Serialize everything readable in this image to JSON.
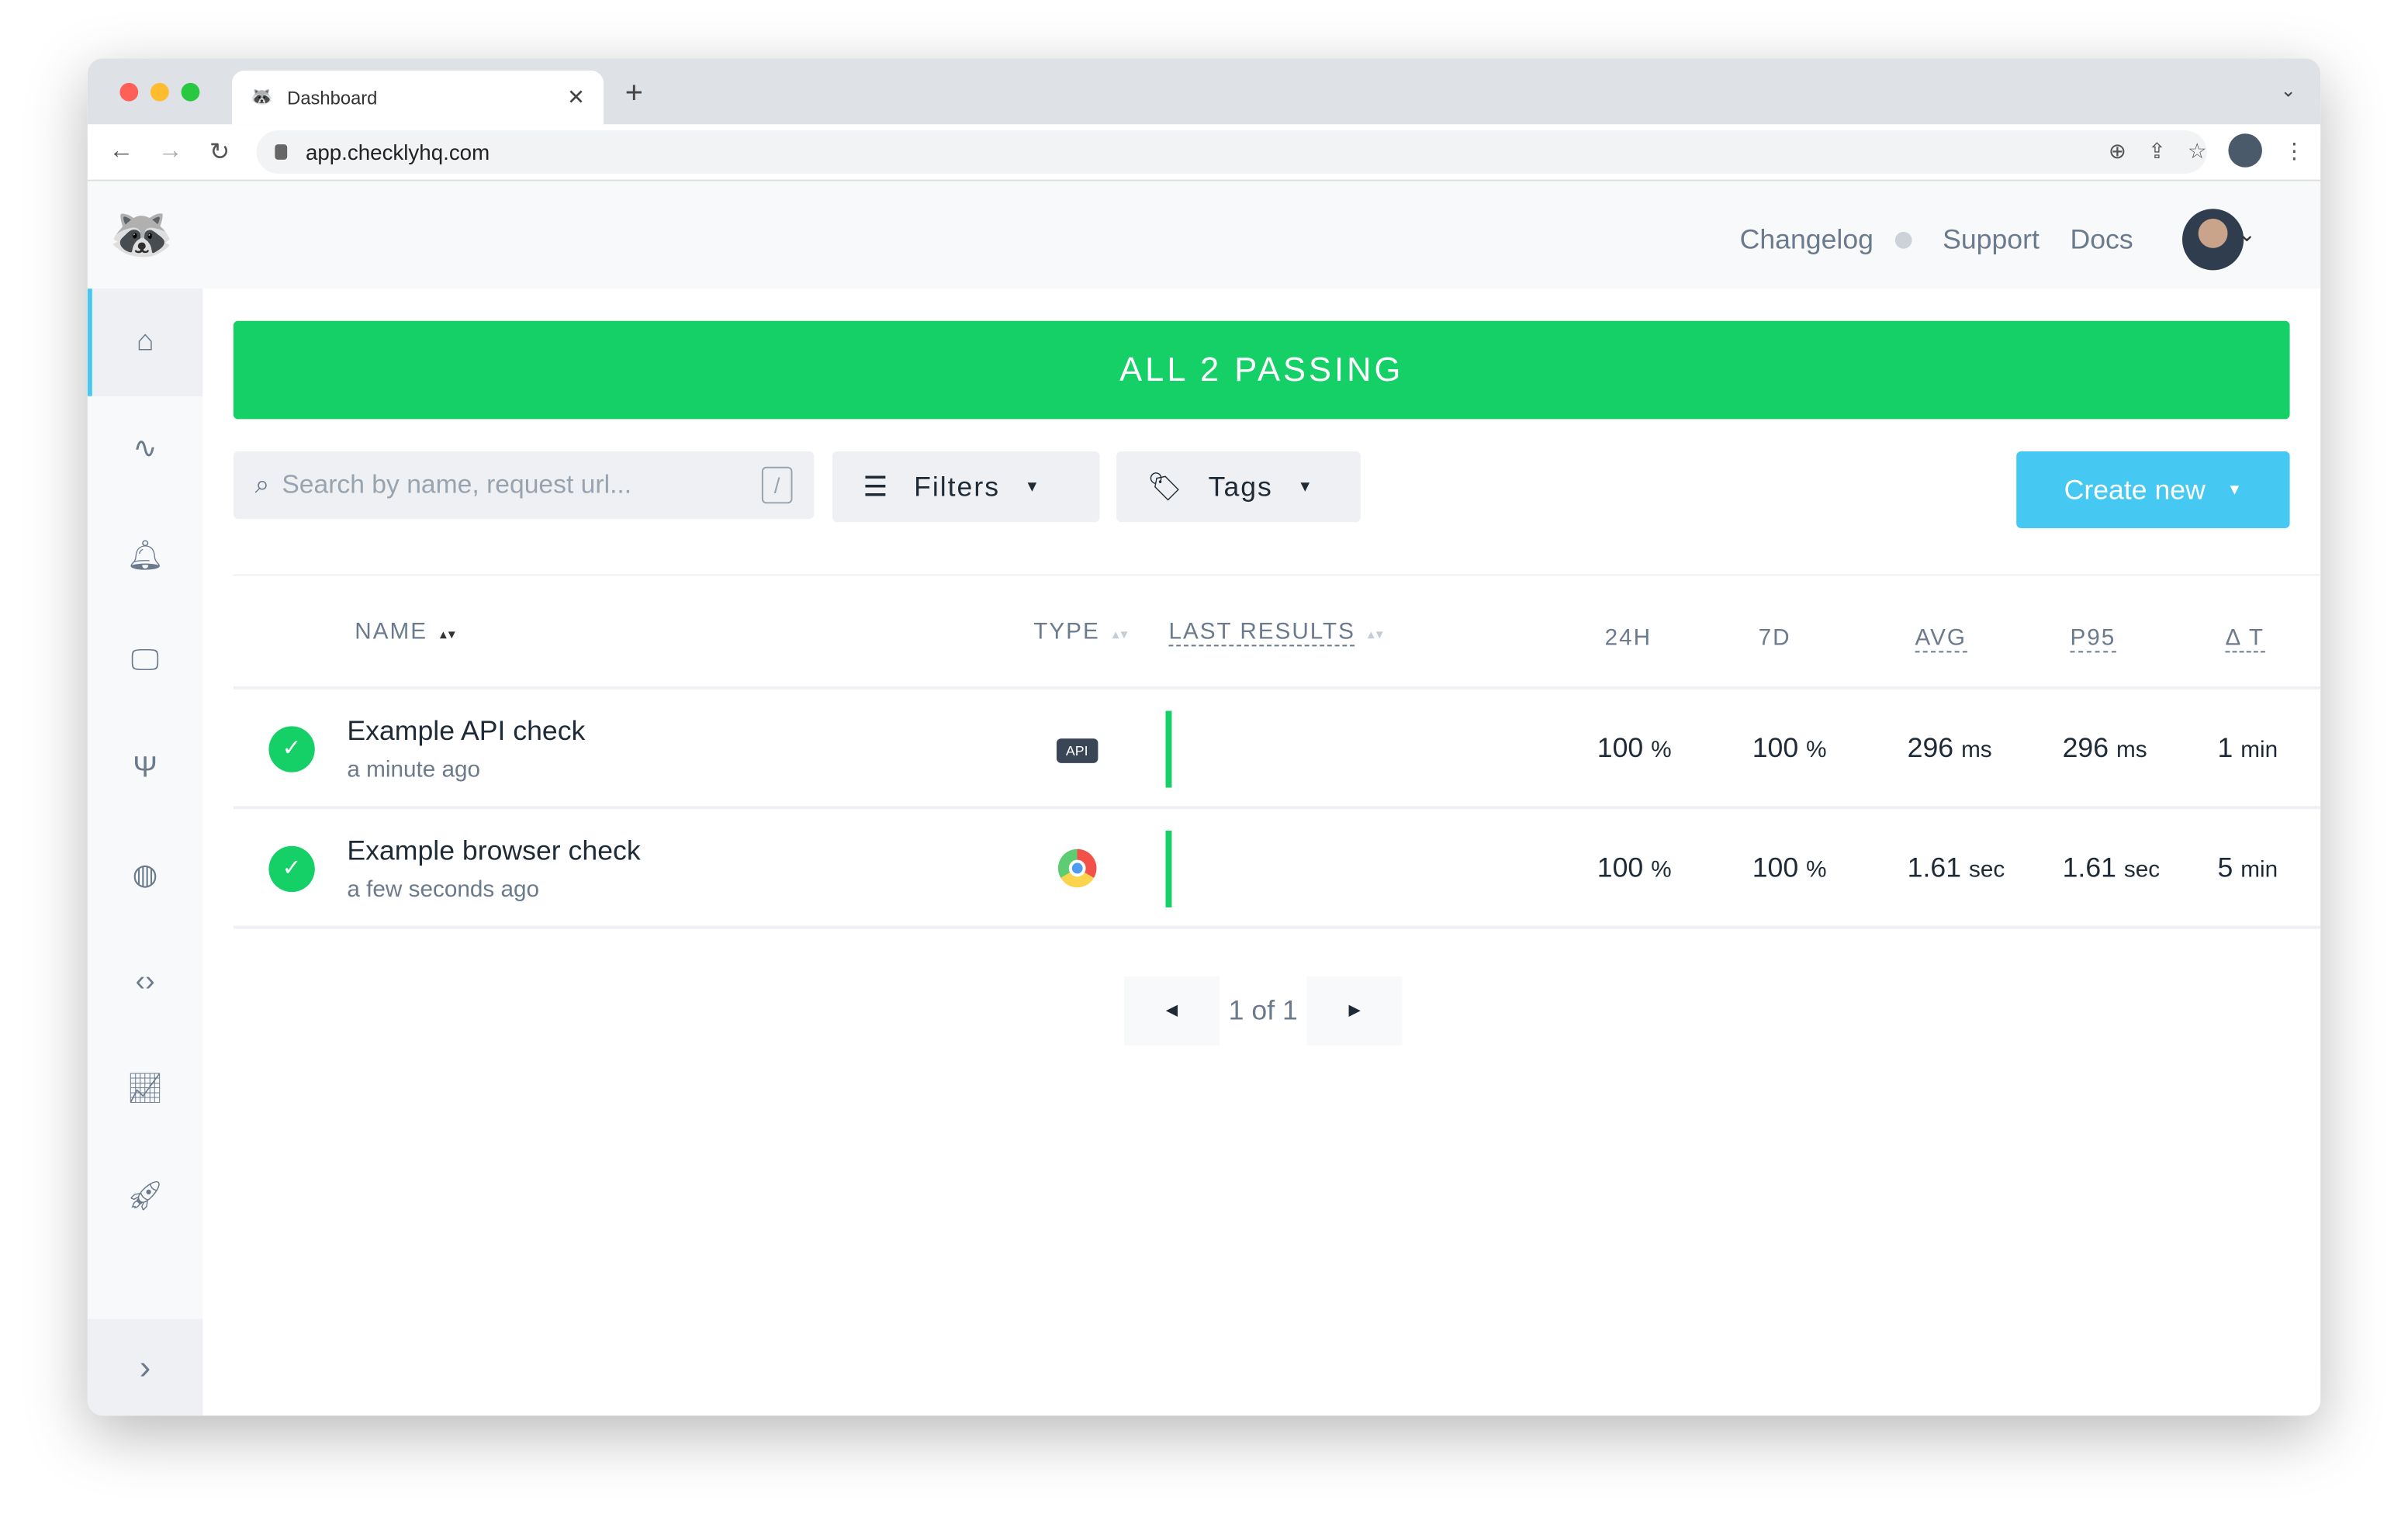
{
  "browser": {
    "tab_title": "Dashboard",
    "url": "app.checklyhq.com"
  },
  "header": {
    "changelog": "Changelog",
    "support": "Support",
    "docs": "Docs"
  },
  "sidebar": {
    "items": [
      "home",
      "activity",
      "alerts",
      "monitor",
      "integrations",
      "globe",
      "code",
      "analytics",
      "rocket"
    ]
  },
  "banner": {
    "text": "ALL 2 PASSING",
    "color": "#15d066"
  },
  "controls": {
    "search_placeholder": "Search by name, request url...",
    "search_shortcut": "/",
    "filters": "Filters",
    "tags": "Tags",
    "create_new": "Create new",
    "accent": "#45c8f1"
  },
  "table": {
    "headers": {
      "name": "NAME",
      "type": "TYPE",
      "last_results": "LAST RESULTS",
      "h24": "24H",
      "d7": "7D",
      "avg": "AVG",
      "p95": "P95",
      "dt": "Δ T"
    },
    "rows": [
      {
        "name": "Example API check",
        "sub": "a minute ago",
        "type": "API",
        "h24": "100",
        "h24_unit": "%",
        "d7": "100",
        "d7_unit": "%",
        "avg": "296",
        "avg_unit": "ms",
        "p95": "296",
        "p95_unit": "ms",
        "dt": "1",
        "dt_unit": "min",
        "status": "passing"
      },
      {
        "name": "Example browser check",
        "sub": "a few seconds ago",
        "type": "browser",
        "h24": "100",
        "h24_unit": "%",
        "d7": "100",
        "d7_unit": "%",
        "avg": "1.61",
        "avg_unit": "sec",
        "p95": "1.61",
        "p95_unit": "sec",
        "dt": "5",
        "dt_unit": "min",
        "status": "passing"
      }
    ]
  },
  "pagination": {
    "label": "1 of 1"
  }
}
